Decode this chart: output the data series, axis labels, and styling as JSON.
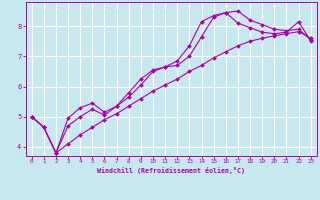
{
  "background_color": "#c8e8f0",
  "grid_color": "#ffffff",
  "line_color": "#aa00aa",
  "xlabel": "Windchill (Refroidissement éolien,°C)",
  "xlim_min": -0.5,
  "xlim_max": 23.5,
  "ylim_min": 3.7,
  "ylim_max": 8.8,
  "yticks": [
    4,
    5,
    6,
    7,
    8
  ],
  "xticks": [
    0,
    1,
    2,
    3,
    4,
    5,
    6,
    7,
    8,
    9,
    10,
    11,
    12,
    13,
    14,
    15,
    16,
    17,
    18,
    19,
    20,
    21,
    22,
    23
  ],
  "curve1_x": [
    0,
    1,
    2,
    3,
    4,
    5,
    6,
    7,
    8,
    9,
    10,
    11,
    12,
    13,
    14,
    15,
    16,
    17,
    18,
    19,
    20,
    21,
    22,
    23
  ],
  "curve1_y": [
    5.0,
    4.65,
    3.8,
    4.95,
    5.3,
    5.45,
    5.15,
    5.35,
    5.65,
    6.05,
    6.5,
    6.65,
    6.7,
    7.0,
    7.65,
    8.3,
    8.45,
    8.5,
    8.2,
    8.05,
    7.9,
    7.85,
    7.9,
    7.55
  ],
  "curve2_x": [
    0,
    1,
    2,
    3,
    4,
    5,
    6,
    7,
    8,
    9,
    10,
    11,
    12,
    13,
    14,
    15,
    16,
    17,
    18,
    19,
    20,
    21,
    22,
    23
  ],
  "curve2_y": [
    5.0,
    4.65,
    3.8,
    4.7,
    5.0,
    5.25,
    5.05,
    5.35,
    5.8,
    6.25,
    6.55,
    6.65,
    6.85,
    7.35,
    8.15,
    8.35,
    8.45,
    8.1,
    7.95,
    7.8,
    7.75,
    7.8,
    8.15,
    7.5
  ],
  "curve3_x": [
    0,
    1,
    2,
    3,
    4,
    5,
    6,
    7,
    8,
    9,
    10,
    11,
    12,
    13,
    14,
    15,
    16,
    17,
    18,
    19,
    20,
    21,
    22,
    23
  ],
  "curve3_y": [
    5.0,
    4.65,
    3.8,
    4.1,
    4.4,
    4.65,
    4.9,
    5.1,
    5.35,
    5.6,
    5.85,
    6.05,
    6.25,
    6.5,
    6.7,
    6.95,
    7.15,
    7.35,
    7.5,
    7.6,
    7.68,
    7.75,
    7.82,
    7.6
  ],
  "figsize": [
    3.2,
    2.0
  ],
  "dpi": 100
}
